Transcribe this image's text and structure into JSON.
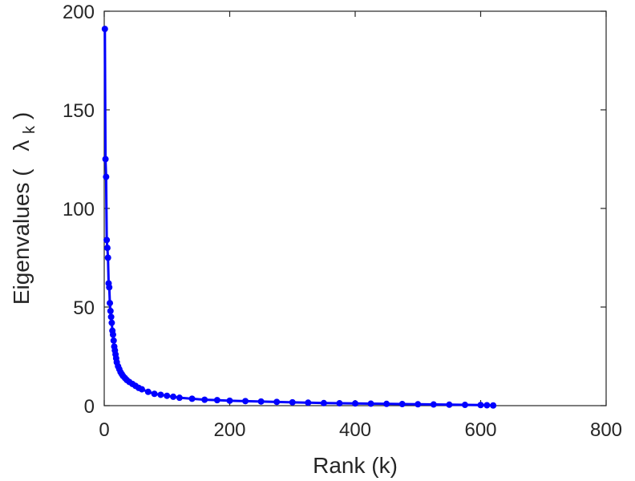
{
  "chart_data": {
    "type": "scatter",
    "title": "",
    "xlabel": "Rank (k)",
    "ylabel": {
      "prefix": "Eigenvalues (",
      "symbol": "λ",
      "subscript": "k",
      "suffix": ")"
    },
    "xlim": [
      0,
      800
    ],
    "ylim": [
      0,
      200
    ],
    "xticks": [
      "0",
      "200",
      "400",
      "600",
      "800"
    ],
    "yticks": [
      "0",
      "50",
      "100",
      "150",
      "200"
    ],
    "grid": false,
    "legend": "none",
    "series": [
      {
        "color": "#0000ff",
        "marker": "circle",
        "x": [
          1,
          2,
          3,
          4,
          5,
          6,
          7,
          8,
          9,
          10,
          11,
          12,
          13,
          14,
          15,
          16,
          17,
          18,
          19,
          20,
          22,
          24,
          26,
          28,
          30,
          33,
          36,
          40,
          45,
          50,
          55,
          60,
          70,
          80,
          90,
          100,
          110,
          120,
          140,
          160,
          180,
          200,
          225,
          250,
          275,
          300,
          325,
          350,
          375,
          400,
          425,
          450,
          475,
          500,
          525,
          550,
          575,
          600,
          610,
          620
        ],
        "y": [
          191,
          125,
          116,
          84,
          80,
          75,
          62,
          60,
          52,
          48,
          45,
          42,
          38,
          36,
          33,
          30,
          28,
          26,
          24,
          22,
          20,
          18.5,
          17,
          16,
          15,
          14,
          13,
          12,
          11,
          10,
          9,
          8.3,
          7,
          6,
          5.5,
          5,
          4.5,
          4,
          3.5,
          3,
          2.8,
          2.5,
          2.3,
          2.1,
          1.9,
          1.7,
          1.5,
          1.3,
          1.2,
          1.1,
          1,
          0.9,
          0.8,
          0.7,
          0.6,
          0.5,
          0.4,
          0.3,
          0.2,
          0.1
        ]
      }
    ]
  }
}
